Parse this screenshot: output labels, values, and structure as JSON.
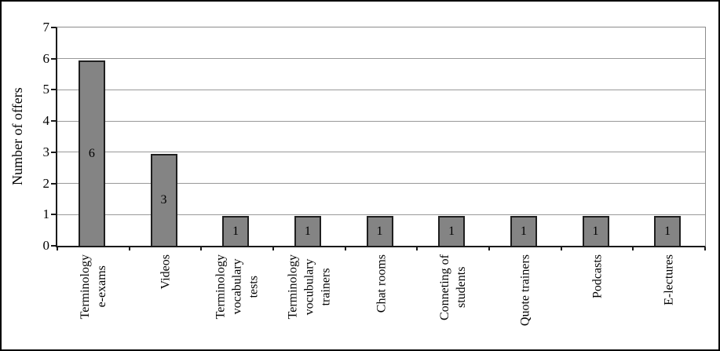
{
  "chart_data": {
    "type": "bar",
    "title": "",
    "ylabel": "Number of offers",
    "xlabel": "",
    "categories": [
      "Terminology\ne-exams",
      "Videos",
      "Terminology\nvocabulary\ntests",
      "Terminology\nvocubulary\ntrainers",
      "Chat rooms",
      "Conneting of\nstudents",
      "Quote trainers",
      "Podcasts",
      "E-lectures"
    ],
    "values": [
      6,
      3,
      1,
      1,
      1,
      1,
      1,
      1,
      1
    ],
    "value_labels": [
      "6",
      "3",
      "1",
      "1",
      "1",
      "1",
      "1",
      "1",
      "1"
    ],
    "ylim": [
      0,
      7
    ],
    "yticks": [
      0,
      1,
      2,
      3,
      4,
      5,
      6,
      7
    ],
    "grid": true,
    "legend": false,
    "colors": {
      "bar_fill": "#848484",
      "bar_border": "#1f1f1f",
      "gridline": "#999999",
      "axis": "#1a1a1a",
      "frame_border": "#000000",
      "text": "#000000"
    }
  }
}
